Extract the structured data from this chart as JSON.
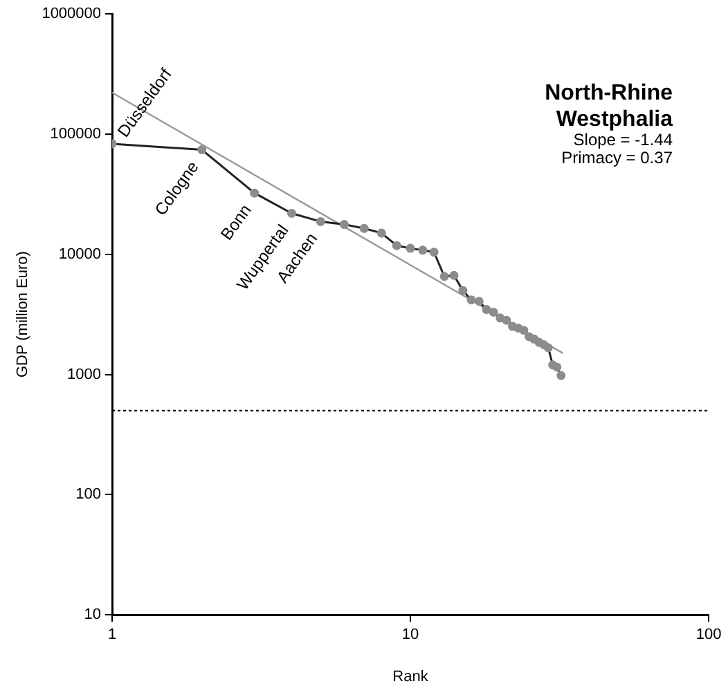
{
  "chart_data": {
    "type": "line",
    "title": "North-Rhine Westphalia",
    "xlabel": "Rank",
    "ylabel": "GDP (million Euro)",
    "log": "xy",
    "xlim": [
      1,
      100
    ],
    "xticks": [
      1,
      10,
      100
    ],
    "ylim": [
      10,
      1000000
    ],
    "yticks": [
      10,
      100,
      1000,
      10000,
      100000,
      1000000
    ],
    "grid": false,
    "legend": false,
    "series": [
      {
        "type": "line",
        "color": "#8c8c8c",
        "marker": "circle",
        "x": [
          1,
          2,
          3,
          4,
          5,
          6,
          7,
          8,
          9,
          10,
          11,
          12,
          13,
          14,
          15,
          16,
          17,
          18,
          19,
          20,
          21,
          22,
          23,
          24,
          25,
          26,
          27,
          28,
          29,
          30,
          31,
          32
        ],
        "values": [
          83000,
          74000,
          32300,
          21900,
          18700,
          17700,
          16400,
          15000,
          11800,
          11200,
          10800,
          10400,
          6540,
          6670,
          4990,
          4170,
          4060,
          3470,
          3300,
          2950,
          2820,
          2510,
          2430,
          2330,
          2060,
          1970,
          1850,
          1770,
          1670,
          1200,
          1150,
          980
        ]
      },
      {
        "type": "line",
        "color": "#999999",
        "marker": "none",
        "x": [
          1,
          32.5
        ],
        "values": [
          221000,
          1500
        ]
      }
    ],
    "ref_lines": [
      {
        "axis": "y",
        "value": 500,
        "color": "#000000",
        "line_style": "dotted"
      }
    ],
    "annotations": [
      {
        "text": "Düsseldorf",
        "x": 1,
        "y": 83000
      },
      {
        "text": "Cologne",
        "x": 2,
        "y": 74000
      },
      {
        "text": "Bonn",
        "x": 3,
        "y": 32300
      },
      {
        "text": "Wuppertal",
        "x": 4,
        "y": 21900
      },
      {
        "text": "Aachen",
        "x": 5,
        "y": 18700
      },
      "Slope = -1.44",
      "Primacy = 0.37"
    ]
  }
}
